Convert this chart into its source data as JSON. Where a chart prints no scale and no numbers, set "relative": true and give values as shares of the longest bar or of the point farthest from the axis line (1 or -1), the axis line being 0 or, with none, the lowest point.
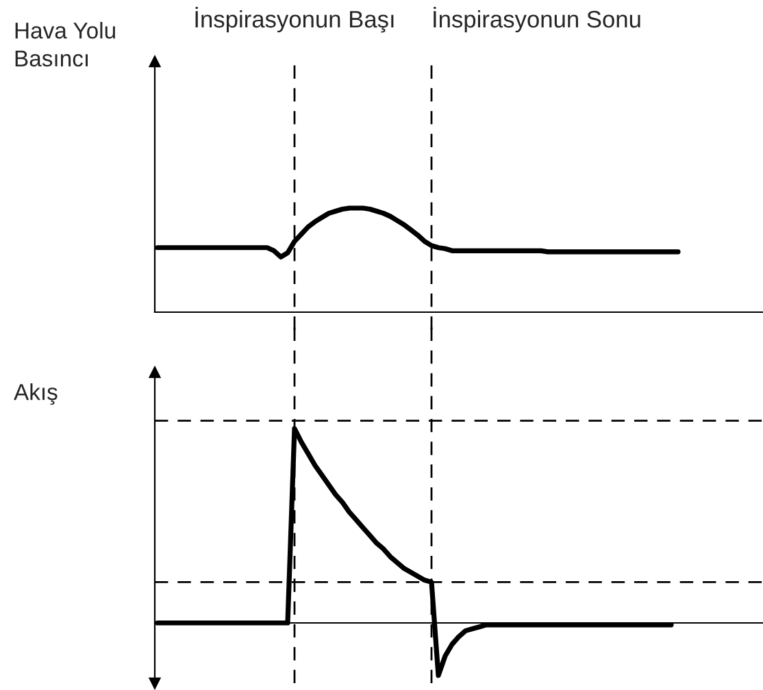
{
  "chart_data": [
    {
      "type": "line",
      "ylabel": "Hava Yolu\nBasıncı",
      "relative": true,
      "color": "#000000",
      "categories": [
        null,
        null,
        null,
        null,
        null,
        null,
        null,
        null,
        null,
        null,
        null,
        null,
        null,
        null,
        null,
        null,
        null,
        null,
        null,
        null,
        null,
        null,
        null,
        null,
        null,
        null,
        null,
        null,
        null,
        null,
        null,
        null,
        null,
        null,
        null,
        null,
        null,
        null,
        null,
        null,
        null,
        null,
        null,
        null,
        null,
        null,
        null,
        null,
        null,
        null,
        null,
        null,
        null,
        null,
        null,
        null,
        null,
        null,
        null,
        null,
        null,
        null,
        null,
        null,
        null,
        null,
        null,
        null,
        null,
        null,
        null,
        null,
        null,
        null,
        null,
        null,
        null
      ],
      "values": [
        0.62,
        0.62,
        0.62,
        0.62,
        0.62,
        0.62,
        0.62,
        0.62,
        0.62,
        0.62,
        0.62,
        0.62,
        0.62,
        0.62,
        0.62,
        0.62,
        0.62,
        0.59,
        0.53,
        0.57,
        0.68,
        0.75,
        0.82,
        0.87,
        0.91,
        0.95,
        0.97,
        0.99,
        1.0,
        1.0,
        1.0,
        0.99,
        0.97,
        0.95,
        0.92,
        0.88,
        0.84,
        0.79,
        0.74,
        0.68,
        0.64,
        0.62,
        0.61,
        0.59,
        0.59,
        0.59,
        0.59,
        0.59,
        0.59,
        0.59,
        0.59,
        0.59,
        0.59,
        0.59,
        0.59,
        0.59,
        0.59,
        0.58,
        0.58,
        0.58,
        0.58,
        0.58,
        0.58,
        0.58,
        0.58,
        0.58,
        0.58,
        0.58,
        0.58,
        0.58,
        0.58,
        0.58,
        0.58,
        0.58,
        0.58,
        0.58,
        0.58
      ],
      "annotations": [
        "İnspirasyonun Başı",
        "İnspirasyonun Sonu"
      ]
    },
    {
      "type": "line",
      "ylabel": "Akış",
      "relative": true,
      "color": "#000000",
      "categories": [
        null,
        null,
        null,
        null,
        null,
        null,
        null,
        null,
        null,
        null,
        null,
        null,
        null,
        null,
        null,
        null,
        null,
        null,
        null,
        null,
        null,
        null,
        null,
        null,
        null,
        null,
        null,
        null,
        null,
        null,
        null,
        null,
        null,
        null,
        null,
        null,
        null,
        null,
        null,
        null,
        null,
        null,
        null,
        null,
        null,
        null,
        null,
        null,
        null,
        null,
        null,
        null,
        null,
        null,
        null,
        null,
        null,
        null,
        null,
        null,
        null,
        null,
        null,
        null,
        null,
        null,
        null,
        null,
        null,
        null,
        null,
        null,
        null,
        null,
        null,
        null
      ],
      "values": [
        0,
        0,
        0,
        0,
        0,
        0,
        0,
        0,
        0,
        0,
        0,
        0,
        0,
        0,
        0,
        0,
        0,
        0,
        0,
        0,
        1.0,
        0.93,
        0.87,
        0.81,
        0.76,
        0.71,
        0.66,
        0.62,
        0.57,
        0.53,
        0.49,
        0.45,
        0.41,
        0.38,
        0.34,
        0.31,
        0.28,
        0.26,
        0.24,
        0.22,
        0.21,
        -0.27,
        -0.17,
        -0.11,
        -0.07,
        -0.04,
        -0.03,
        -0.02,
        -0.01,
        -0.01,
        -0.01,
        -0.01,
        -0.01,
        -0.01,
        -0.01,
        -0.01,
        -0.01,
        -0.01,
        -0.01,
        -0.01,
        -0.01,
        -0.01,
        -0.01,
        -0.01,
        -0.01,
        -0.01,
        -0.01,
        -0.01,
        -0.01,
        -0.01,
        -0.01,
        -0.01,
        -0.01,
        -0.01,
        -0.01,
        -0.01
      ],
      "ref_lines": [
        {
          "axis": "y",
          "value": 1.04,
          "line_style": "dashed",
          "color": "#000000"
        },
        {
          "axis": "y",
          "value": 0.21,
          "line_style": "dashed",
          "color": "#000000"
        }
      ]
    }
  ]
}
